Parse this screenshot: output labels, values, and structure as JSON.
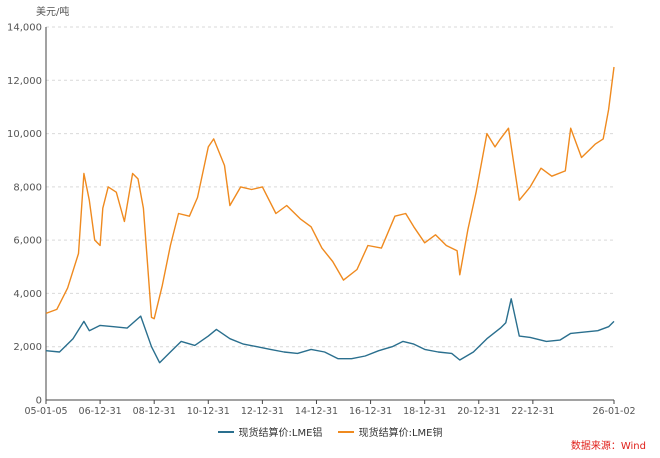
{
  "chart_data": {
    "type": "line",
    "ylabel": "美元/吨",
    "ylim": [
      0,
      14000
    ],
    "yticks": [
      0,
      2000,
      4000,
      6000,
      8000,
      10000,
      12000,
      14000
    ],
    "ytick_labels": [
      "0",
      "2,000",
      "4,000",
      "6,000",
      "8,000",
      "10,000",
      "12,000",
      "14,000"
    ],
    "xlim": [
      2005.0,
      2026.0
    ],
    "xticks": [
      2005.0,
      2007.0,
      2009.0,
      2011.0,
      2013.0,
      2015.0,
      2017.0,
      2019.0,
      2021.0,
      2023.0,
      2026.0
    ],
    "xtick_labels": [
      "05-01-05",
      "06-12-31",
      "08-12-31",
      "10-12-31",
      "12-12-31",
      "14-12-31",
      "16-12-31",
      "18-12-31",
      "20-12-31",
      "22-12-31",
      "26-01-02"
    ],
    "grid": true,
    "legend": "bottom",
    "series": [
      {
        "name": "现货结算价:LME铝",
        "color": "#2a6f8e",
        "x": [
          2005.0,
          2005.5,
          2006.0,
          2006.4,
          2006.6,
          2007.0,
          2007.5,
          2008.0,
          2008.5,
          2008.9,
          2009.2,
          2009.6,
          2010.0,
          2010.5,
          2011.0,
          2011.3,
          2011.8,
          2012.3,
          2012.8,
          2013.3,
          2013.8,
          2014.3,
          2014.8,
          2015.3,
          2015.8,
          2016.3,
          2016.8,
          2017.3,
          2017.8,
          2018.2,
          2018.6,
          2019.0,
          2019.5,
          2020.0,
          2020.3,
          2020.8,
          2021.3,
          2021.8,
          2022.0,
          2022.2,
          2022.5,
          2022.9,
          2023.5,
          2024.0,
          2024.4,
          2024.9,
          2025.4,
          2025.8,
          2026.0
        ],
        "values": [
          1850,
          1800,
          2300,
          2950,
          2600,
          2800,
          2750,
          2700,
          3150,
          2000,
          1400,
          1800,
          2200,
          2050,
          2400,
          2650,
          2300,
          2100,
          2000,
          1900,
          1800,
          1750,
          1900,
          1800,
          1550,
          1550,
          1650,
          1850,
          2000,
          2200,
          2100,
          1900,
          1800,
          1750,
          1500,
          1800,
          2300,
          2700,
          2900,
          3800,
          2400,
          2350,
          2200,
          2250,
          2500,
          2550,
          2600,
          2750,
          2950
        ]
      },
      {
        "name": "现货结算价:LME铜",
        "color": "#ef8a1f",
        "x": [
          2005.0,
          2005.4,
          2005.8,
          2006.2,
          2006.4,
          2006.6,
          2006.8,
          2007.0,
          2007.1,
          2007.3,
          2007.6,
          2007.9,
          2008.2,
          2008.4,
          2008.6,
          2008.9,
          2009.0,
          2009.3,
          2009.6,
          2009.9,
          2010.3,
          2010.6,
          2011.0,
          2011.2,
          2011.6,
          2011.8,
          2012.2,
          2012.6,
          2013.0,
          2013.5,
          2013.9,
          2014.4,
          2014.8,
          2015.2,
          2015.6,
          2016.0,
          2016.5,
          2016.9,
          2017.4,
          2017.9,
          2018.3,
          2018.6,
          2019.0,
          2019.4,
          2019.8,
          2020.2,
          2020.3,
          2020.6,
          2020.9,
          2021.3,
          2021.6,
          2021.8,
          2022.1,
          2022.5,
          2022.9,
          2023.3,
          2023.7,
          2024.2,
          2024.4,
          2024.8,
          2025.1,
          2025.3,
          2025.6,
          2025.8,
          2026.0
        ],
        "values": [
          3250,
          3400,
          4200,
          5500,
          8500,
          7500,
          6000,
          5800,
          7200,
          8000,
          7800,
          6700,
          8500,
          8300,
          7200,
          3100,
          3050,
          4300,
          5800,
          7000,
          6900,
          7600,
          9500,
          9800,
          8800,
          7300,
          8000,
          7900,
          8000,
          7000,
          7300,
          6800,
          6500,
          5700,
          5200,
          4500,
          4900,
          5800,
          5700,
          6900,
          7000,
          6500,
          5900,
          6200,
          5800,
          5600,
          4700,
          6400,
          7800,
          10000,
          9500,
          9800,
          10200,
          7500,
          8000,
          8700,
          8400,
          8600,
          10200,
          9100,
          9400,
          9600,
          9800,
          10900,
          12500
        ]
      }
    ]
  },
  "source": "数据来源：Wind"
}
